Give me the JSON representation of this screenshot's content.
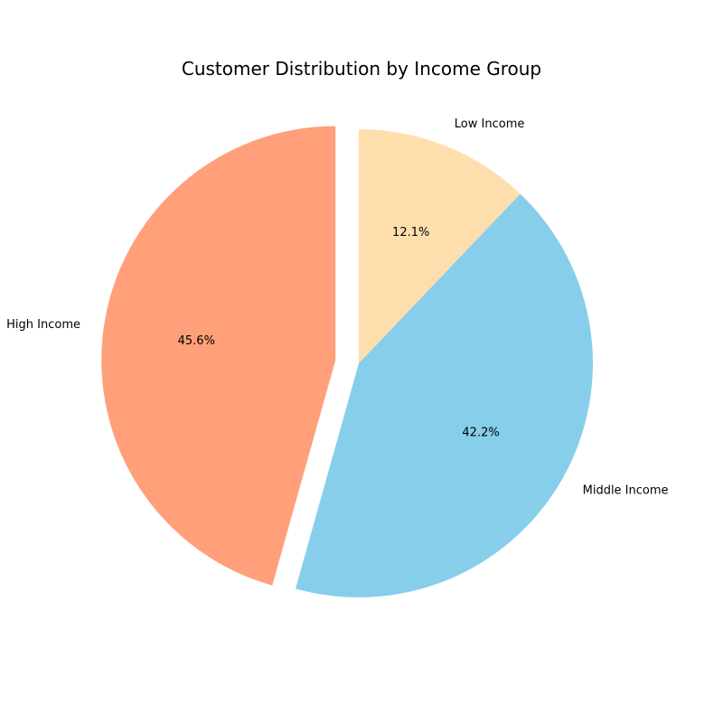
{
  "chart_data": {
    "type": "pie",
    "title": "Customer Distribution by Income Group",
    "slices": [
      {
        "label": "High Income",
        "percent_label": "45.6%",
        "value": 45.6,
        "color": "#FFA07A",
        "exploded": true
      },
      {
        "label": "Middle Income",
        "percent_label": "42.2%",
        "value": 42.2,
        "color": "#87CEEB",
        "exploded": false
      },
      {
        "label": "Low Income",
        "percent_label": "12.1%",
        "value": 12.1,
        "color": "#FFDEAD",
        "exploded": false
      }
    ],
    "start_angle_deg": 90,
    "direction": "counterclockwise",
    "legend": "none"
  }
}
